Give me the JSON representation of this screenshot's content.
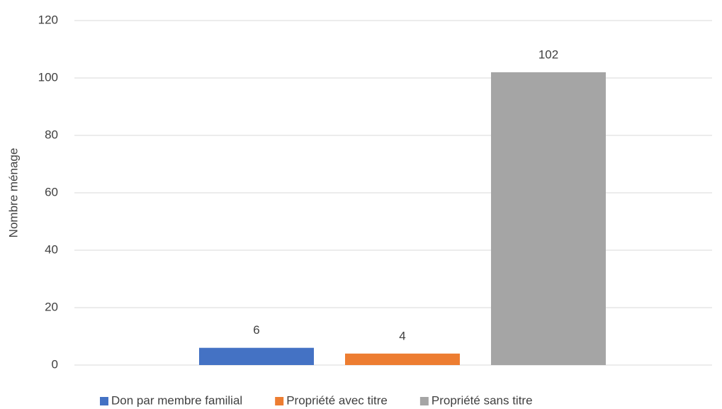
{
  "chart_data": {
    "type": "bar",
    "y_label": "Nombre ménage",
    "categories": [
      null
    ],
    "series": [
      {
        "name": "Don par membre familial",
        "color": "#4472c4",
        "values": [
          6
        ]
      },
      {
        "name": "Propriété avec titre",
        "color": "#ed7d31",
        "values": [
          4
        ]
      },
      {
        "name": "Propriété sans titre",
        "color": "#a5a5a5",
        "values": [
          102
        ]
      }
    ],
    "ylim": [
      0,
      120
    ],
    "yticks": [
      0,
      20,
      40,
      60,
      80,
      100,
      120
    ],
    "grid": true,
    "legend": "bottom",
    "data_labels": true
  }
}
